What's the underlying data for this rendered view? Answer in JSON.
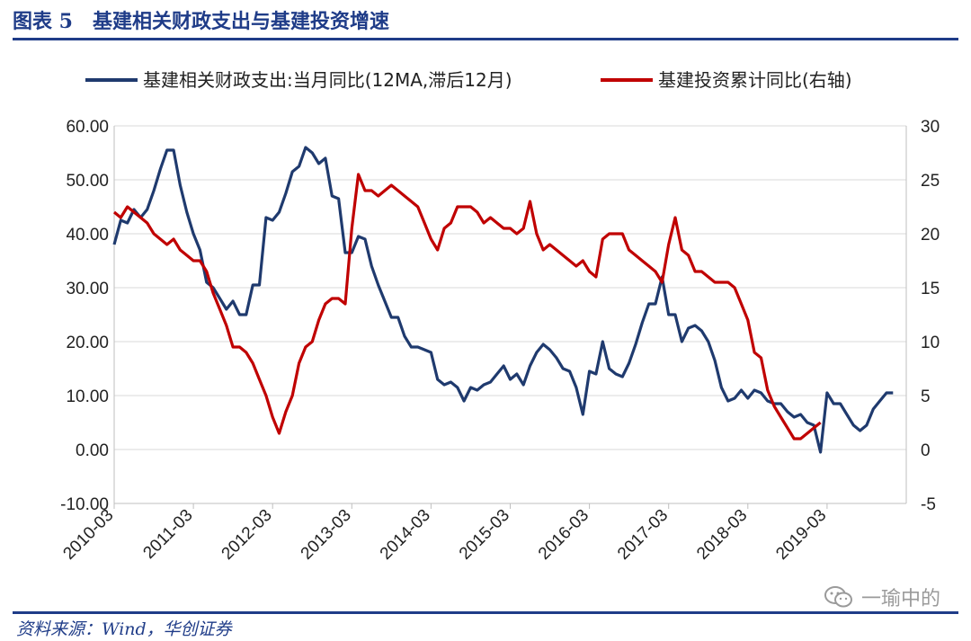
{
  "header": {
    "figure_label": "图表 5",
    "title": "基建相关财政支出与基建投资增速"
  },
  "source": "资料来源：Wind，华创证券",
  "watermark": "一瑜中的",
  "chart_data": {
    "type": "line",
    "title": "基建相关财政支出与基建投资增速",
    "xlabel": "",
    "ylabel": "",
    "y_left": {
      "range": [
        -10,
        60
      ],
      "ticks": [
        "60.00",
        "50.00",
        "40.00",
        "30.00",
        "20.00",
        "10.00",
        "0.00",
        "-10.00"
      ]
    },
    "y_right": {
      "range": [
        -5,
        30
      ],
      "ticks": [
        "30",
        "25",
        "20",
        "15",
        "10",
        "5",
        "0",
        "-5"
      ]
    },
    "x_ticks": [
      "2010-03",
      "2011-03",
      "2012-03",
      "2013-03",
      "2014-03",
      "2015-03",
      "2016-03",
      "2017-03",
      "2018-03",
      "2019-03"
    ],
    "grid": true,
    "legend_position": "top",
    "series": [
      {
        "name": "基建相关财政支出:当月同比(12MA,滞后12月)",
        "axis": "left",
        "color": "#1f3a6e",
        "points": [
          [
            "2010-03",
            38.0
          ],
          [
            "2010-04",
            42.5
          ],
          [
            "2010-05",
            42.0
          ],
          [
            "2010-06",
            44.5
          ],
          [
            "2010-07",
            43.0
          ],
          [
            "2010-08",
            44.5
          ],
          [
            "2010-09",
            48.0
          ],
          [
            "2010-10",
            52.0
          ],
          [
            "2010-11",
            55.5
          ],
          [
            "2010-12",
            55.5
          ],
          [
            "2011-01",
            49.0
          ],
          [
            "2011-02",
            44.0
          ],
          [
            "2011-03",
            40.0
          ],
          [
            "2011-04",
            37.0
          ],
          [
            "2011-05",
            31.0
          ],
          [
            "2011-06",
            30.0
          ],
          [
            "2011-07",
            28.0
          ],
          [
            "2011-08",
            26.0
          ],
          [
            "2011-09",
            27.5
          ],
          [
            "2011-10",
            25.0
          ],
          [
            "2011-11",
            25.0
          ],
          [
            "2011-12",
            30.5
          ],
          [
            "2012-01",
            30.5
          ],
          [
            "2012-02",
            43.0
          ],
          [
            "2012-03",
            42.5
          ],
          [
            "2012-04",
            44.0
          ],
          [
            "2012-05",
            47.5
          ],
          [
            "2012-06",
            51.5
          ],
          [
            "2012-07",
            52.5
          ],
          [
            "2012-08",
            56.0
          ],
          [
            "2012-09",
            55.0
          ],
          [
            "2012-10",
            53.0
          ],
          [
            "2012-11",
            54.0
          ],
          [
            "2012-12",
            47.0
          ],
          [
            "2013-01",
            46.5
          ],
          [
            "2013-02",
            36.5
          ],
          [
            "2013-03",
            36.5
          ],
          [
            "2013-04",
            39.5
          ],
          [
            "2013-05",
            39.0
          ],
          [
            "2013-06",
            34.0
          ],
          [
            "2013-07",
            30.5
          ],
          [
            "2013-08",
            27.5
          ],
          [
            "2013-09",
            24.5
          ],
          [
            "2013-10",
            24.5
          ],
          [
            "2013-11",
            21.0
          ],
          [
            "2013-12",
            19.0
          ],
          [
            "2014-01",
            19.0
          ],
          [
            "2014-02",
            18.5
          ],
          [
            "2014-03",
            18.0
          ],
          [
            "2014-04",
            13.0
          ],
          [
            "2014-05",
            12.0
          ],
          [
            "2014-06",
            12.5
          ],
          [
            "2014-07",
            11.5
          ],
          [
            "2014-08",
            9.0
          ],
          [
            "2014-09",
            11.5
          ],
          [
            "2014-10",
            11.0
          ],
          [
            "2014-11",
            12.0
          ],
          [
            "2014-12",
            12.5
          ],
          [
            "2015-01",
            14.0
          ],
          [
            "2015-02",
            15.5
          ],
          [
            "2015-03",
            13.0
          ],
          [
            "2015-04",
            14.0
          ],
          [
            "2015-05",
            12.0
          ],
          [
            "2015-06",
            15.5
          ],
          [
            "2015-07",
            18.0
          ],
          [
            "2015-08",
            19.5
          ],
          [
            "2015-09",
            18.5
          ],
          [
            "2015-10",
            17.0
          ],
          [
            "2015-11",
            15.0
          ],
          [
            "2015-12",
            14.5
          ],
          [
            "2016-01",
            11.5
          ],
          [
            "2016-02",
            6.5
          ],
          [
            "2016-03",
            14.5
          ],
          [
            "2016-04",
            14.0
          ],
          [
            "2016-05",
            20.0
          ],
          [
            "2016-06",
            15.0
          ],
          [
            "2016-07",
            14.0
          ],
          [
            "2016-08",
            13.5
          ],
          [
            "2016-09",
            16.0
          ],
          [
            "2016-10",
            19.5
          ],
          [
            "2016-11",
            23.5
          ],
          [
            "2016-12",
            27.0
          ],
          [
            "2017-01",
            27.0
          ],
          [
            "2017-02",
            32.0
          ],
          [
            "2017-03",
            25.0
          ],
          [
            "2017-04",
            25.0
          ],
          [
            "2017-05",
            20.0
          ],
          [
            "2017-06",
            22.5
          ],
          [
            "2017-07",
            23.0
          ],
          [
            "2017-08",
            22.0
          ],
          [
            "2017-09",
            20.0
          ],
          [
            "2017-10",
            16.5
          ],
          [
            "2017-11",
            11.5
          ],
          [
            "2017-12",
            9.0
          ],
          [
            "2018-01",
            9.5
          ],
          [
            "2018-02",
            11.0
          ],
          [
            "2018-03",
            9.5
          ],
          [
            "2018-04",
            11.0
          ],
          [
            "2018-05",
            10.5
          ],
          [
            "2018-06",
            9.0
          ],
          [
            "2018-07",
            8.5
          ],
          [
            "2018-08",
            8.5
          ],
          [
            "2018-09",
            7.0
          ],
          [
            "2018-10",
            6.0
          ],
          [
            "2018-11",
            6.5
          ],
          [
            "2018-12",
            5.0
          ],
          [
            "2019-01",
            4.5
          ],
          [
            "2019-02",
            -0.5
          ],
          [
            "2019-03",
            10.5
          ],
          [
            "2019-04",
            8.5
          ],
          [
            "2019-05",
            8.5
          ],
          [
            "2019-06",
            6.5
          ],
          [
            "2019-07",
            4.5
          ],
          [
            "2019-08",
            3.5
          ],
          [
            "2019-09",
            4.5
          ],
          [
            "2019-10",
            7.5
          ],
          [
            "2019-11",
            9.0
          ],
          [
            "2019-12",
            10.5
          ],
          [
            "2020-01",
            10.5
          ]
        ]
      },
      {
        "name": "基建投资累计同比(右轴)",
        "axis": "right",
        "color": "#c00000",
        "points": [
          [
            "2010-03",
            22.0
          ],
          [
            "2010-04",
            21.5
          ],
          [
            "2010-05",
            22.5
          ],
          [
            "2010-06",
            22.0
          ],
          [
            "2010-07",
            21.5
          ],
          [
            "2010-08",
            21.0
          ],
          [
            "2010-09",
            20.0
          ],
          [
            "2010-10",
            19.5
          ],
          [
            "2010-11",
            19.0
          ],
          [
            "2010-12",
            19.5
          ],
          [
            "2011-01",
            18.5
          ],
          [
            "2011-02",
            18.0
          ],
          [
            "2011-03",
            17.5
          ],
          [
            "2011-04",
            17.5
          ],
          [
            "2011-05",
            16.5
          ],
          [
            "2011-06",
            14.5
          ],
          [
            "2011-07",
            13.0
          ],
          [
            "2011-08",
            11.5
          ],
          [
            "2011-09",
            9.5
          ],
          [
            "2011-10",
            9.5
          ],
          [
            "2011-11",
            9.0
          ],
          [
            "2011-12",
            8.0
          ],
          [
            "2012-01",
            6.5
          ],
          [
            "2012-02",
            5.0
          ],
          [
            "2012-03",
            3.0
          ],
          [
            "2012-04",
            1.5
          ],
          [
            "2012-05",
            3.5
          ],
          [
            "2012-06",
            5.0
          ],
          [
            "2012-07",
            8.0
          ],
          [
            "2012-08",
            9.5
          ],
          [
            "2012-09",
            10.0
          ],
          [
            "2012-10",
            12.0
          ],
          [
            "2012-11",
            13.5
          ],
          [
            "2012-12",
            14.0
          ],
          [
            "2013-01",
            14.0
          ],
          [
            "2013-02",
            13.5
          ],
          [
            "2013-03",
            20.5
          ],
          [
            "2013-04",
            25.5
          ],
          [
            "2013-05",
            24.0
          ],
          [
            "2013-06",
            24.0
          ],
          [
            "2013-07",
            23.5
          ],
          [
            "2013-08",
            24.0
          ],
          [
            "2013-09",
            24.5
          ],
          [
            "2013-10",
            24.0
          ],
          [
            "2013-11",
            23.5
          ],
          [
            "2013-12",
            23.0
          ],
          [
            "2014-01",
            22.5
          ],
          [
            "2014-02",
            21.0
          ],
          [
            "2014-03",
            19.5
          ],
          [
            "2014-04",
            18.5
          ],
          [
            "2014-05",
            20.5
          ],
          [
            "2014-06",
            21.0
          ],
          [
            "2014-07",
            22.5
          ],
          [
            "2014-08",
            22.5
          ],
          [
            "2014-09",
            22.5
          ],
          [
            "2014-10",
            22.0
          ],
          [
            "2014-11",
            21.0
          ],
          [
            "2014-12",
            21.5
          ],
          [
            "2015-01",
            21.0
          ],
          [
            "2015-02",
            20.5
          ],
          [
            "2015-03",
            20.5
          ],
          [
            "2015-04",
            20.0
          ],
          [
            "2015-05",
            20.5
          ],
          [
            "2015-06",
            23.0
          ],
          [
            "2015-07",
            20.0
          ],
          [
            "2015-08",
            18.5
          ],
          [
            "2015-09",
            19.0
          ],
          [
            "2015-10",
            18.5
          ],
          [
            "2015-11",
            18.0
          ],
          [
            "2015-12",
            17.5
          ],
          [
            "2016-01",
            17.0
          ],
          [
            "2016-02",
            17.5
          ],
          [
            "2016-03",
            16.5
          ],
          [
            "2016-04",
            16.0
          ],
          [
            "2016-05",
            19.5
          ],
          [
            "2016-06",
            20.0
          ],
          [
            "2016-07",
            20.0
          ],
          [
            "2016-08",
            20.0
          ],
          [
            "2016-09",
            18.5
          ],
          [
            "2016-10",
            18.0
          ],
          [
            "2016-11",
            17.5
          ],
          [
            "2016-12",
            17.0
          ],
          [
            "2017-01",
            16.5
          ],
          [
            "2017-02",
            15.5
          ],
          [
            "2017-03",
            19.0
          ],
          [
            "2017-04",
            21.5
          ],
          [
            "2017-05",
            18.5
          ],
          [
            "2017-06",
            18.0
          ],
          [
            "2017-07",
            16.5
          ],
          [
            "2017-08",
            16.5
          ],
          [
            "2017-09",
            16.0
          ],
          [
            "2017-10",
            15.5
          ],
          [
            "2017-11",
            15.5
          ],
          [
            "2017-12",
            15.5
          ],
          [
            "2018-01",
            15.0
          ],
          [
            "2018-02",
            13.5
          ],
          [
            "2018-03",
            12.0
          ],
          [
            "2018-04",
            9.0
          ],
          [
            "2018-05",
            8.5
          ],
          [
            "2018-06",
            5.5
          ],
          [
            "2018-07",
            4.0
          ],
          [
            "2018-08",
            3.0
          ],
          [
            "2018-09",
            2.0
          ],
          [
            "2018-10",
            1.0
          ],
          [
            "2018-11",
            1.0
          ],
          [
            "2018-12",
            1.5
          ],
          [
            "2019-01",
            2.0
          ],
          [
            "2019-02",
            2.5
          ]
        ]
      }
    ]
  }
}
